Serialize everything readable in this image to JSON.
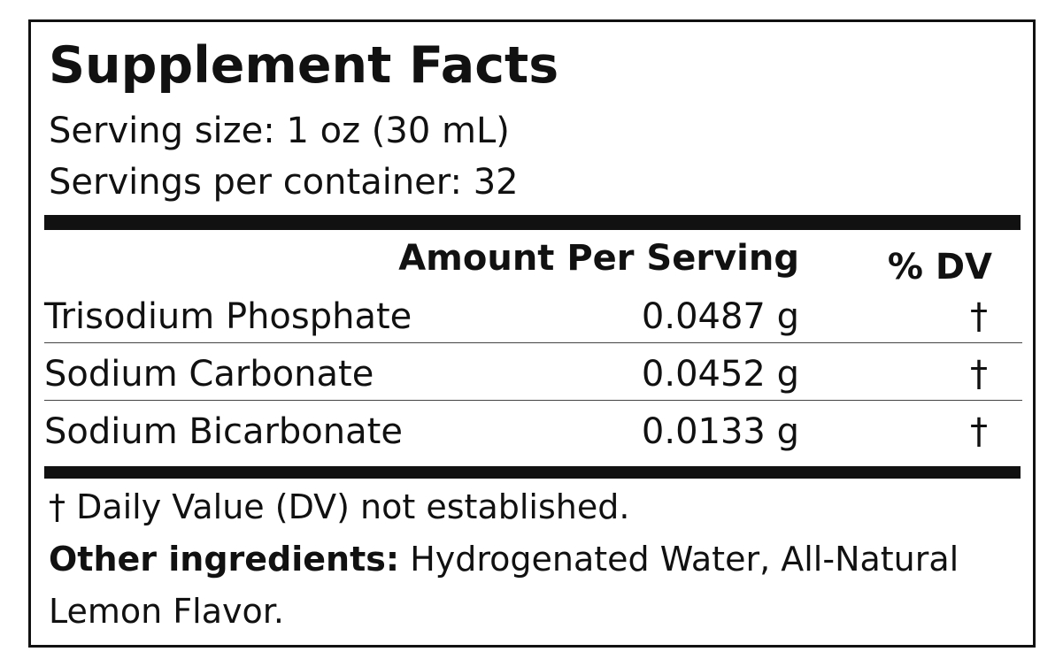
{
  "title": "Supplement Facts",
  "serving_size": "Serving size: 1 oz (30 mL)",
  "servings_per_container": "Servings per container: 32",
  "table": {
    "header": [
      "Amount Per Serving",
      "% DV"
    ],
    "rows": [
      [
        "Trisodium Phosphate",
        "0.0487 g",
        "†"
      ],
      [
        "Sodium Carbonate",
        "0.0452 g",
        "†"
      ],
      [
        "Sodium Bicarbonate",
        "0.0133 g",
        "†"
      ]
    ]
  },
  "footnote": "† Daily Value (DV) not established.",
  "other_ingredients": {
    "label": "Other ingredients:",
    "text": "Hydrogenated Water, All-Natural Lemon Flavor."
  }
}
